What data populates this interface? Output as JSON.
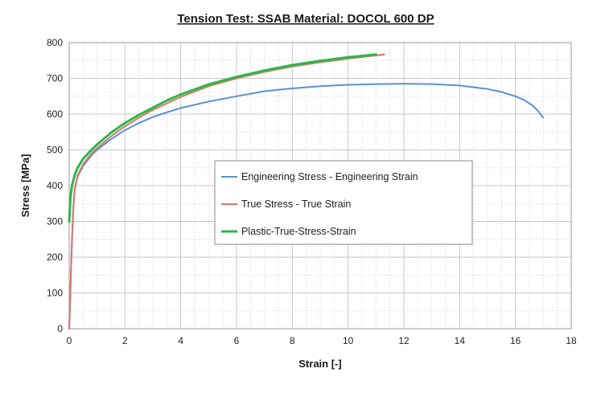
{
  "chart_data": {
    "type": "line",
    "title": "Tension Test: SSAB Material: DOCOL 600 DP",
    "xlabel": "Strain [-]",
    "ylabel": "Stress [MPa]",
    "xlim": [
      0,
      18
    ],
    "ylim": [
      0,
      800
    ],
    "xticks": [
      0,
      2,
      4,
      6,
      8,
      10,
      12,
      14,
      16,
      18
    ],
    "yticks": [
      0,
      100,
      200,
      300,
      400,
      500,
      600,
      700,
      800
    ],
    "grid": true,
    "legend_position": "center",
    "series": [
      {
        "name": "Engineering Stress - Engineering Strain",
        "color": "#5b8fd6",
        "x": [
          0,
          0.05,
          0.1,
          0.15,
          0.2,
          0.3,
          0.5,
          0.8,
          1.0,
          1.5,
          2.0,
          2.5,
          3.0,
          3.5,
          4.0,
          5.0,
          6.0,
          7.0,
          8.0,
          9.0,
          10.0,
          11.0,
          12.0,
          13.0,
          14.0,
          15.0,
          15.5,
          16.0,
          16.3,
          16.6,
          16.8,
          17.0
        ],
        "y": [
          0,
          120,
          250,
          340,
          390,
          425,
          455,
          485,
          500,
          530,
          555,
          575,
          592,
          605,
          617,
          635,
          650,
          664,
          672,
          678,
          682,
          684,
          685,
          684,
          680,
          670,
          662,
          650,
          640,
          625,
          610,
          590
        ]
      },
      {
        "name": "True Stress - True Strain",
        "color": "#d9756a",
        "x": [
          0,
          0.05,
          0.1,
          0.15,
          0.2,
          0.3,
          0.5,
          0.8,
          1.0,
          1.5,
          2.0,
          2.5,
          3.0,
          3.5,
          4.0,
          5.0,
          6.0,
          7.0,
          8.0,
          9.0,
          10.0,
          11.0,
          11.3
        ],
        "y": [
          0,
          120,
          250,
          340,
          390,
          428,
          460,
          490,
          505,
          538,
          566,
          590,
          612,
          630,
          648,
          678,
          700,
          718,
          733,
          745,
          755,
          764,
          767
        ]
      },
      {
        "name": "Plastic-True-Stress-Strain",
        "color": "#2bb84a",
        "x": [
          0,
          0.05,
          0.1,
          0.2,
          0.3,
          0.5,
          0.8,
          1.0,
          1.5,
          2.0,
          2.5,
          3.0,
          3.5,
          4.0,
          5.0,
          6.0,
          7.0,
          8.0,
          9.0,
          10.0,
          10.5,
          11.0
        ],
        "y": [
          300,
          370,
          400,
          430,
          450,
          475,
          500,
          515,
          548,
          575,
          598,
          618,
          638,
          655,
          683,
          704,
          722,
          737,
          749,
          759,
          763,
          767
        ]
      }
    ]
  }
}
